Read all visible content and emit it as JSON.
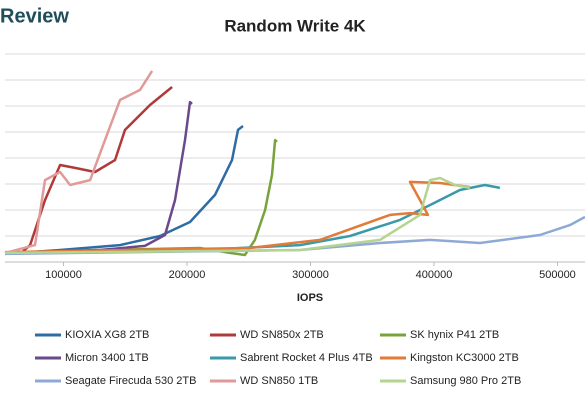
{
  "logo": "Review",
  "chart_data": {
    "type": "line",
    "title": "Random Write 4K",
    "x_label": "IOPS",
    "xlim": [
      52600,
      522300
    ],
    "xticks": [
      100000,
      200000,
      300000,
      400000,
      500000
    ],
    "ylim": [
      0,
      8.5
    ],
    "yticks": [
      1,
      2,
      3,
      4,
      5,
      6,
      7,
      8
    ],
    "grid": true,
    "series": [
      {
        "name": "KIOXIA XG8 2TB",
        "color": "#2e6da4",
        "x": [
          52600,
          97200,
          145700,
          178100,
          202400,
          222700,
          236400,
          241300,
          245300
        ],
        "values": [
          0.31,
          0.46,
          0.65,
          1.0,
          1.54,
          2.58,
          3.92,
          5.08,
          5.23
        ]
      },
      {
        "name": "WD SN850x 2TB",
        "color": "#b03a3a",
        "x": [
          64800,
          72900,
          85000,
          97200,
          109300,
          125500,
          141700,
          149800,
          170000,
          187900
        ],
        "values": [
          0.31,
          0.65,
          2.38,
          3.73,
          3.62,
          3.46,
          3.92,
          5.08,
          6.04,
          6.73
        ]
      },
      {
        "name": "SK hynix P41 2TB",
        "color": "#77a33a",
        "x": [
          52600,
          129500,
          210500,
          234800,
          246900,
          255000,
          263200,
          268800,
          271300,
          272900
        ],
        "values": [
          0.35,
          0.46,
          0.54,
          0.35,
          0.27,
          0.85,
          2.0,
          3.35,
          4.69,
          4.62
        ]
      },
      {
        "name": "Micron 3400 1TB",
        "color": "#6a4a8a",
        "x": [
          52600,
          129500,
          165900,
          182200,
          190300,
          198400,
          202400,
          204000
        ],
        "values": [
          0.35,
          0.46,
          0.62,
          1.04,
          2.38,
          4.69,
          6.15,
          6.08
        ]
      },
      {
        "name": "Sabrent Rocket 4 Plus 4TB",
        "color": "#3a9aaa",
        "x": [
          52600,
          210500,
          291500,
          332000,
          372500,
          396700,
          421000,
          441200,
          453400
        ],
        "values": [
          0.35,
          0.46,
          0.65,
          1.0,
          1.62,
          2.19,
          2.77,
          2.96,
          2.85
        ]
      },
      {
        "name": "Kingston KC3000 2TB",
        "color": "#e07b39",
        "x": [
          52600,
          251000,
          307700,
          364400,
          380600,
          395100,
          388700,
          380600,
          404900,
          429100
        ],
        "values": [
          0.38,
          0.54,
          0.85,
          1.81,
          1.88,
          1.81,
          2.38,
          3.08,
          3.04,
          2.88
        ]
      },
      {
        "name": "Seagate Firecuda 530 2TB",
        "color": "#8fa9d6",
        "x": [
          52600,
          291500,
          356300,
          396800,
          437200,
          485800,
          510100,
          522300
        ],
        "values": [
          0.31,
          0.46,
          0.73,
          0.85,
          0.73,
          1.04,
          1.42,
          1.73
        ]
      },
      {
        "name": "WD SN850 1TB",
        "color": "#e09a9a",
        "x": [
          52600,
          76900,
          85000,
          97200,
          105300,
          121500,
          133600,
          145700,
          161900,
          171700
        ],
        "values": [
          0.35,
          0.65,
          3.15,
          3.46,
          2.96,
          3.15,
          4.69,
          6.23,
          6.62,
          7.35
        ]
      },
      {
        "name": "Samsung 980 Pro 2TB",
        "color": "#b5d48f",
        "x": [
          52600,
          291500,
          356300,
          388700,
          396800,
          404900,
          417000,
          429100
        ],
        "values": [
          0.35,
          0.46,
          0.85,
          1.81,
          3.15,
          3.23,
          2.96,
          2.85
        ]
      }
    ]
  }
}
